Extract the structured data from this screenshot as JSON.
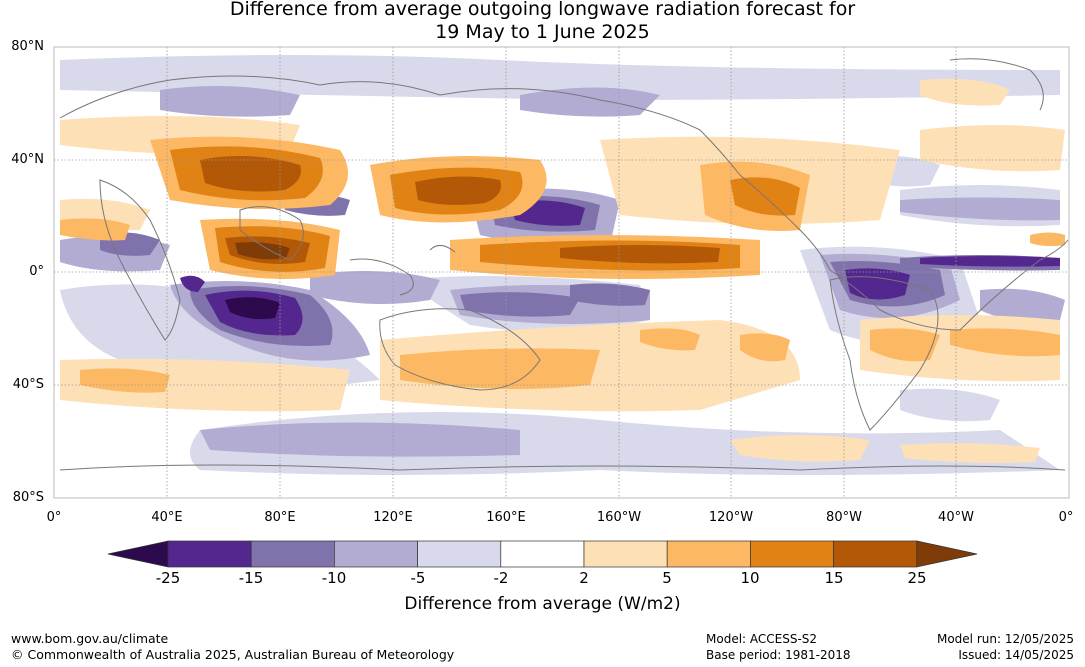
{
  "title": {
    "line1": "Difference from average outgoing longwave radiation forecast for",
    "line2": "19 May to 1 June 2025"
  },
  "lat_labels": [
    "80°N",
    "40°N",
    "0°",
    "40°S",
    "80°S"
  ],
  "lon_labels": [
    "0°",
    "40°E",
    "80°E",
    "120°E",
    "160°E",
    "160°W",
    "120°W",
    "80°W",
    "40°W",
    "0°"
  ],
  "colorbar": {
    "title": "Difference from average (W/m2)",
    "tick_labels": [
      "-25",
      "-15",
      "-10",
      "-5",
      "-2",
      "2",
      "5",
      "10",
      "15",
      "25"
    ],
    "colors": [
      "#2d0a4e",
      "#54278f",
      "#8073ac",
      "#b2abd2",
      "#d8daeb",
      "#ffffff",
      "#fee0b6",
      "#fdb863",
      "#e08214",
      "#b35806",
      "#7f3b08"
    ]
  },
  "footer": {
    "website": "www.bom.gov.au/climate",
    "copyright": "© Commonwealth of Australia 2025, Australian Bureau of Meteorology",
    "model": "Model: ACCESS-S2",
    "base_period": "Base period: 1981-2018",
    "model_run": "Model run: 12/05/2025",
    "issued": "Issued: 14/05/2025"
  }
}
